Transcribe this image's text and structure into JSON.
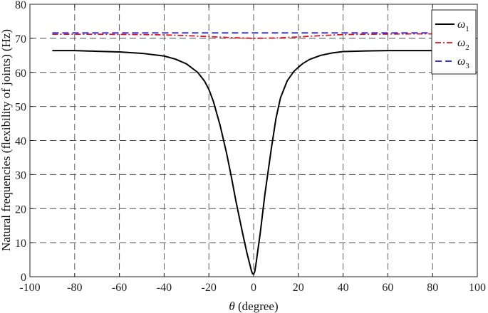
{
  "chart_data": {
    "type": "line",
    "xlabel_symbol": "θ",
    "xlabel_rest": " (degree)",
    "ylabel": "Natural frequencies (flexibility of joints) (Hz)",
    "xlim": [
      -100,
      100
    ],
    "ylim": [
      0,
      80
    ],
    "xticks": [
      -100,
      -80,
      -60,
      -40,
      -20,
      0,
      20,
      40,
      60,
      80,
      100
    ],
    "yticks": [
      0,
      10,
      20,
      30,
      40,
      50,
      60,
      70,
      80
    ],
    "grid": true,
    "legend_position": "top-right",
    "series": [
      {
        "name": "ω1",
        "symbol": "ω",
        "subscript": "1",
        "color": "#000000",
        "style": "solid",
        "x": [
          -90,
          -80,
          -70,
          -60,
          -50,
          -40,
          -35,
          -30,
          -25,
          -22,
          -20,
          -18,
          -15,
          -12,
          -10,
          -8,
          -5,
          -3,
          -1,
          -0.5,
          0,
          0.5,
          1,
          3,
          5,
          8,
          10,
          12,
          15,
          18,
          20,
          22,
          25,
          30,
          35,
          40,
          50,
          60,
          70,
          80,
          90
        ],
        "y": [
          66.4,
          66.4,
          66.2,
          66.0,
          65.6,
          64.8,
          63.9,
          62.5,
          60.0,
          57.5,
          55.0,
          51.5,
          44.5,
          36.0,
          29.5,
          22.5,
          13.0,
          7.0,
          1.8,
          0.9,
          0.7,
          1.5,
          3.5,
          13.0,
          24.0,
          38.0,
          46.5,
          52.5,
          57.5,
          60.3,
          61.5,
          62.6,
          63.8,
          65.0,
          65.7,
          66.1,
          66.3,
          66.4,
          66.4,
          66.4,
          66.2
        ]
      },
      {
        "name": "ω2",
        "symbol": "ω",
        "subscript": "2",
        "color": "#e8141c",
        "style": "dashdot",
        "x": [
          -90,
          -70,
          -50,
          -40,
          -30,
          -20,
          -10,
          0,
          10,
          20,
          30,
          40,
          50,
          70,
          90
        ],
        "y": [
          71.2,
          71.2,
          71.1,
          71.0,
          70.8,
          70.5,
          70.2,
          70.0,
          70.1,
          70.4,
          70.8,
          71.1,
          71.2,
          71.3,
          71.3
        ]
      },
      {
        "name": "ω3",
        "symbol": "ω",
        "subscript": "3",
        "color": "#1a1aff",
        "style": "dashed",
        "x": [
          -90,
          -60,
          -30,
          0,
          30,
          60,
          90
        ],
        "y": [
          71.6,
          71.6,
          71.6,
          71.6,
          71.6,
          71.6,
          71.6
        ]
      }
    ]
  }
}
